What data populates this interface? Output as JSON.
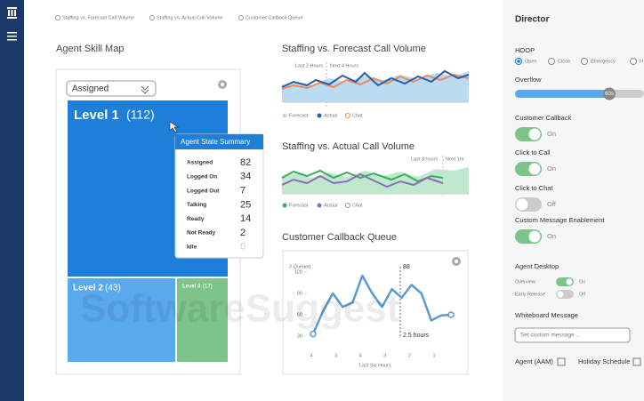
{
  "tabs": [
    "Staffing vs. Forecast Call Volume",
    "Staffing vs. Actual Call Volume",
    "Customer Callback Queue"
  ],
  "skill_map": {
    "title": "Agent Skill Map",
    "dropdown": "Assigned",
    "levels": [
      {
        "name": "Level 1",
        "count": "(112)"
      },
      {
        "name": "Level 2",
        "count": "(43)"
      },
      {
        "name": "Level 3",
        "count": "(17)"
      }
    ]
  },
  "tooltip": {
    "title": "Agent State Summary",
    "rows": [
      [
        "Assigned",
        82
      ],
      [
        "Logged On",
        34
      ],
      [
        "Logged Out",
        7
      ],
      [
        "Talking",
        25
      ],
      [
        "Ready",
        14
      ],
      [
        "Not Ready",
        2
      ],
      [
        "Idle",
        0
      ]
    ]
  },
  "forecast_chart": {
    "title": "Staffing vs. Forecast Call Volume",
    "periods": [
      "Last 2 Hours",
      "Next 4 Hours"
    ],
    "legend": [
      "Forecast",
      "Actual",
      "Chat"
    ]
  },
  "actual_chart": {
    "title": "Staffing vs. Actual Call Volume",
    "periods": [
      "Last 3 hours",
      "Next 1hr"
    ],
    "legend": [
      "Forecast",
      "Actual",
      "Chat"
    ]
  },
  "callback_queue": {
    "title": "Customer Callback Queue",
    "y_label": "# Queued",
    "ylim": [
      0,
      130
    ],
    "yticks": [
      30,
      60,
      90,
      120
    ],
    "xticks": [
      "4",
      "3",
      "4",
      "3",
      "2",
      "1"
    ],
    "x_label": "Last Six Hours",
    "values": [
      33,
      65,
      90,
      71,
      77,
      115,
      90,
      71,
      96,
      84,
      102,
      90,
      52,
      59,
      60
    ],
    "annotations": [
      "88",
      "2.5 hours"
    ]
  },
  "director": {
    "title": "Director",
    "hoop": "HOOP",
    "hoop_options": [
      "Open",
      "Close",
      "Emergency",
      "H"
    ],
    "overflow": "Overflow",
    "overflow_value": "60s",
    "toggles": [
      {
        "label": "Customer Callback",
        "state": "On"
      },
      {
        "label": "Click to Call",
        "state": "On"
      },
      {
        "label": "Click to Chat",
        "state": "Off"
      },
      {
        "label": "Custom Message Enablement",
        "state": "On"
      }
    ],
    "agent_desktop": "Agent Desktop",
    "desktop_toggles": [
      {
        "label": "Overview",
        "state": "On"
      },
      {
        "label": "Early Release",
        "state": "Off"
      }
    ],
    "whiteboard": "Whiteboard Message",
    "whiteboard_placeholder": "Set custom message ...",
    "links": [
      "Agent (AAM)",
      "Holiday Schedule"
    ]
  },
  "watermark": "SoftwareSuggest"
}
